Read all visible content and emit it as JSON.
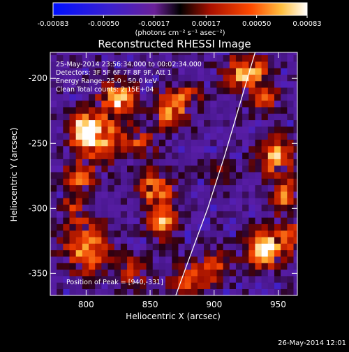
{
  "colorbar": {
    "tick_labels": [
      "-0.00083",
      "-0.00050",
      "-0.00017",
      "0.00017",
      "0.00050",
      "0.00083"
    ],
    "range": [
      -0.00083,
      0.00083
    ],
    "units": "(photons cm⁻² s⁻¹ asec⁻²)"
  },
  "chart_data": {
    "type": "heatmap",
    "title": "Reconstructed RHESSI Image",
    "xlabel": "Heliocentric X (arcsec)",
    "ylabel": "Heliocentric Y (arcsec)",
    "xlim": [
      772,
      965
    ],
    "ylim": [
      -367,
      -180
    ],
    "x_ticks": [
      800,
      850,
      900,
      950
    ],
    "y_ticks": [
      -200,
      -250,
      -300,
      -350
    ],
    "annotations": [
      "25-May-2014 23:56:34.000 to 00:02:34.000",
      "Detectors: 3F 5F 6F 7F 8F 9F, Att 1",
      "Energy Range: 25.0 - 50.0 keV",
      "Clean    Total counts: 2.15E+04"
    ],
    "peak_label": "Position of Peak = [940,-331]",
    "peak": [
      940,
      -331
    ],
    "limb": [
      [
        870,
        -367
      ],
      [
        880,
        -340
      ],
      [
        895,
        -300
      ],
      [
        908,
        -260
      ],
      [
        920,
        -220
      ],
      [
        932,
        -180
      ]
    ],
    "blobs": [
      {
        "x": 825,
        "y": -215,
        "sx": 10,
        "sy": 9,
        "a": 0.95
      },
      {
        "x": 812,
        "y": -245,
        "sx": 12,
        "sy": 12,
        "a": 0.9
      },
      {
        "x": 798,
        "y": -240,
        "sx": 8,
        "sy": 10,
        "a": 0.85
      },
      {
        "x": 795,
        "y": -275,
        "sx": 9,
        "sy": 8,
        "a": 0.7
      },
      {
        "x": 800,
        "y": -330,
        "sx": 12,
        "sy": 14,
        "a": 0.9
      },
      {
        "x": 790,
        "y": -300,
        "sx": 7,
        "sy": 7,
        "a": 0.6
      },
      {
        "x": 865,
        "y": -225,
        "sx": 9,
        "sy": 10,
        "a": 0.75
      },
      {
        "x": 880,
        "y": -215,
        "sx": 8,
        "sy": 7,
        "a": 0.6
      },
      {
        "x": 843,
        "y": -250,
        "sx": 8,
        "sy": 8,
        "a": 0.55
      },
      {
        "x": 855,
        "y": -285,
        "sx": 9,
        "sy": 10,
        "a": 0.85
      },
      {
        "x": 860,
        "y": -310,
        "sx": 8,
        "sy": 9,
        "a": 0.85
      },
      {
        "x": 838,
        "y": -348,
        "sx": 9,
        "sy": 8,
        "a": 0.6
      },
      {
        "x": 880,
        "y": -355,
        "sx": 10,
        "sy": 8,
        "a": 0.65
      },
      {
        "x": 900,
        "y": -345,
        "sx": 9,
        "sy": 9,
        "a": 0.55
      },
      {
        "x": 925,
        "y": -195,
        "sx": 12,
        "sy": 9,
        "a": 0.95
      },
      {
        "x": 940,
        "y": -215,
        "sx": 8,
        "sy": 8,
        "a": 0.6
      },
      {
        "x": 948,
        "y": -260,
        "sx": 10,
        "sy": 10,
        "a": 0.9
      },
      {
        "x": 955,
        "y": -290,
        "sx": 7,
        "sy": 9,
        "a": 0.75
      },
      {
        "x": 905,
        "y": -275,
        "sx": 7,
        "sy": 7,
        "a": 0.4
      },
      {
        "x": 940,
        "y": -331,
        "sx": 10,
        "sy": 10,
        "a": 1.15
      },
      {
        "x": 960,
        "y": -320,
        "sx": 7,
        "sy": 8,
        "a": 0.6
      }
    ]
  },
  "footer": {
    "timestamp": "26-May-2014 12:01"
  }
}
